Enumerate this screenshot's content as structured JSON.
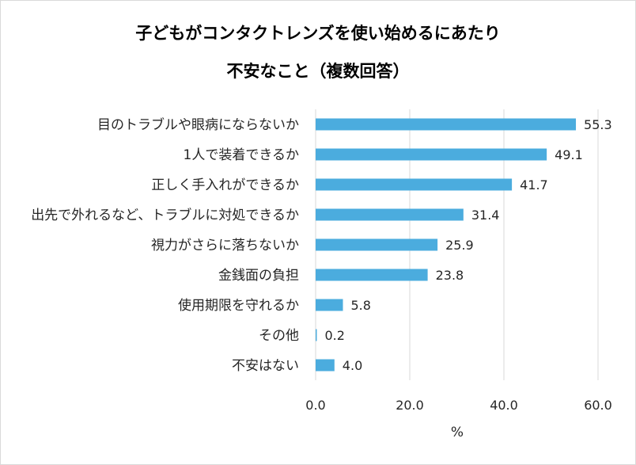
{
  "chart_data": {
    "type": "bar",
    "orientation": "horizontal",
    "title_line1": "子どもがコンタクトレンズを使い始めるにあたり",
    "title_line2": "不安なこと（複数回答）",
    "xlabel": "%",
    "ylabel": "",
    "xlim": [
      0,
      60
    ],
    "xticks": [
      "0.0",
      "20.0",
      "40.0",
      "60.0"
    ],
    "grid": true,
    "legend": "none",
    "bar_color": "#4bacde",
    "categories": [
      "目のトラブルや眼病にならないか",
      "1人で装着できるか",
      "正しく手入れができるか",
      "出先で外れるなど、トラブルに対処できるか",
      "視力がさらに落ちないか",
      "金銭面の負担",
      "使用期限を守れるか",
      "その他",
      "不安はない"
    ],
    "values": [
      55.3,
      49.1,
      41.7,
      31.4,
      25.9,
      23.8,
      5.8,
      0.2,
      4.0
    ],
    "value_labels": [
      "55.3",
      "49.1",
      "41.7",
      "31.4",
      "25.9",
      "23.8",
      "5.8",
      "0.2",
      "4.0"
    ]
  }
}
